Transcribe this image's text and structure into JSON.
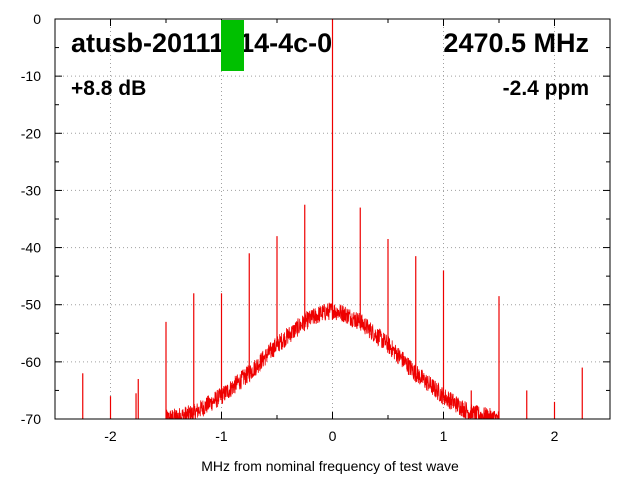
{
  "overlay": {
    "device_id": "atusb-20111214-4c-0",
    "frequency": "2470.5 MHz",
    "gain": "+8.8 dB",
    "ppm": "-2.4 ppm"
  },
  "colors": {
    "trace": "#ee0000",
    "marker": "#00c000",
    "grid": "#a0a0a0",
    "axis": "#000000"
  },
  "chart_data": {
    "type": "line",
    "title": "",
    "xlabel": "MHz from nominal frequency of test wave",
    "ylabel": "",
    "xlim": [
      -2.5,
      2.5
    ],
    "ylim": [
      -70,
      0
    ],
    "x_ticks": [
      -2,
      -1,
      0,
      1,
      2
    ],
    "x_tick_labels": [
      "-2",
      "-1",
      "0",
      "1",
      "2"
    ],
    "y_ticks": [
      0,
      -10,
      -20,
      -30,
      -40,
      -50,
      -60,
      -70
    ],
    "y_tick_labels": [
      "0",
      "-10",
      "-20",
      "-30",
      "-40",
      "-50",
      "-60",
      "-70"
    ],
    "grid": true,
    "series": [
      {
        "color": "#ee0000",
        "noise_envelope": {
          "x": [
            -1.5,
            -1.25,
            -1.0,
            -0.75,
            -0.5,
            -0.25,
            -0.1,
            0.0,
            0.1,
            0.25,
            0.5,
            0.75,
            1.0,
            1.25,
            1.5
          ],
          "y": [
            -70,
            -69,
            -66,
            -62,
            -57,
            -53,
            -51.5,
            -51,
            -51.5,
            -53,
            -57,
            -62,
            -66,
            -69,
            -70
          ]
        },
        "spurs": [
          {
            "x": -2.25,
            "y": -62
          },
          {
            "x": -2.0,
            "y": -66
          },
          {
            "x": -1.77,
            "y": -65.5
          },
          {
            "x": -1.75,
            "y": -63
          },
          {
            "x": -1.5,
            "y": -53
          },
          {
            "x": -1.25,
            "y": -48
          },
          {
            "x": -1.0,
            "y": -48
          },
          {
            "x": -0.75,
            "y": -41
          },
          {
            "x": -0.5,
            "y": -38
          },
          {
            "x": -0.25,
            "y": -32.5
          },
          {
            "x": 0.0,
            "y": 0
          },
          {
            "x": 0.25,
            "y": -33
          },
          {
            "x": 0.5,
            "y": -38.5
          },
          {
            "x": 0.75,
            "y": -41.5
          },
          {
            "x": 1.0,
            "y": -44
          },
          {
            "x": 1.25,
            "y": -65
          },
          {
            "x": 1.5,
            "y": -48.5
          },
          {
            "x": 1.75,
            "y": -65
          },
          {
            "x": 2.0,
            "y": -67
          },
          {
            "x": 2.25,
            "y": -61
          }
        ]
      }
    ]
  }
}
